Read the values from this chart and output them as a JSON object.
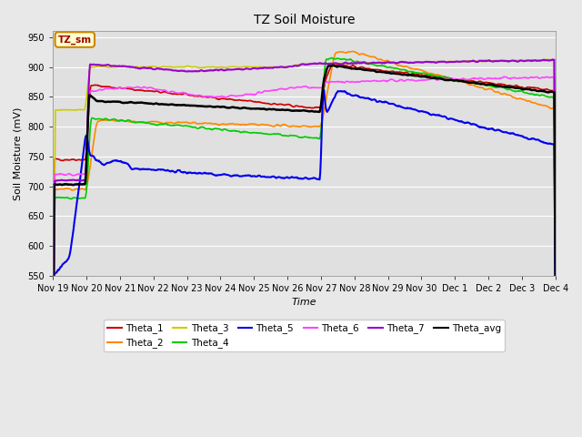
{
  "title": "TZ Soil Moisture",
  "xlabel": "Time",
  "ylabel": "Soil Moisture (mV)",
  "ylim": [
    550,
    960
  ],
  "yticks": [
    550,
    600,
    650,
    700,
    750,
    800,
    850,
    900,
    950
  ],
  "fig_facecolor": "#e8e8e8",
  "ax_facecolor": "#e0e0e0",
  "legend_label": "TZ_sm",
  "legend_bg": "#ffffcc",
  "legend_border": "#cc8800",
  "legend_text_color": "#990000",
  "series_colors": {
    "Theta_1": "#cc0000",
    "Theta_2": "#ff8800",
    "Theta_3": "#cccc00",
    "Theta_4": "#00cc00",
    "Theta_5": "#0000ee",
    "Theta_6": "#ff44ff",
    "Theta_7": "#9900cc",
    "Theta_avg": "#000000"
  },
  "x_labels": [
    "Nov 19",
    "Nov 20",
    "Nov 21",
    "Nov 22",
    "Nov 23",
    "Nov 24",
    "Nov 25",
    "Nov 26",
    "Nov 27",
    "Nov 28",
    "Nov 29",
    "Nov 30",
    "Dec 1",
    "Dec 2",
    "Dec 3",
    "Dec 4"
  ],
  "n_points": 800
}
